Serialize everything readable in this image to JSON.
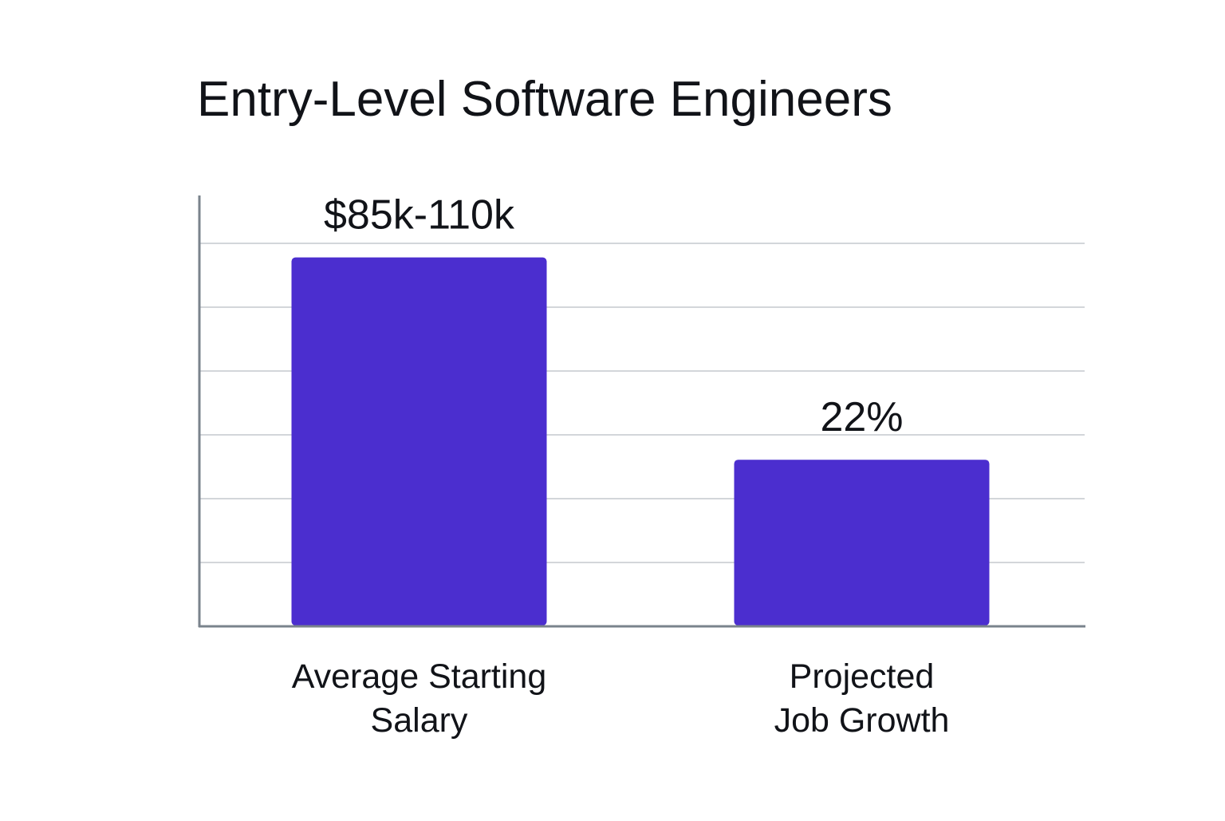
{
  "chart_data": {
    "type": "bar",
    "title": "Entry-Level Software Engineers",
    "categories": [
      [
        "Average Starting",
        "Salary"
      ],
      [
        "Projected",
        "Job Growth"
      ]
    ],
    "values": [
      5.78,
      2.61
    ],
    "value_labels": [
      "$85k-110k",
      "22%"
    ],
    "xlabel": "",
    "ylabel": "",
    "ylim": [
      0,
      6.75
    ],
    "gridlines": [
      1,
      2,
      3,
      4,
      5,
      6
    ],
    "grid": true,
    "legend": "none",
    "colors": {
      "bar": "#4B2ECF",
      "axis": "#7A838C",
      "grid": "#D3D6DA",
      "text": "#111318"
    }
  }
}
